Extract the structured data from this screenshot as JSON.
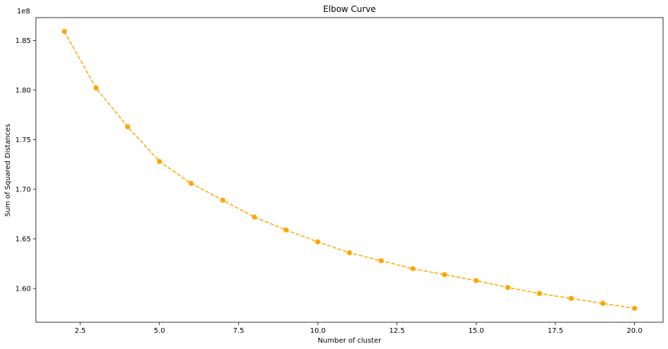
{
  "chart_data": {
    "type": "line",
    "title": "Elbow Curve",
    "xlabel": "Number of cluster",
    "ylabel": "Sum of Squared Distances",
    "y_offset_label": "1e8",
    "x": [
      2,
      3,
      4,
      5,
      6,
      7,
      8,
      9,
      10,
      11,
      12,
      13,
      14,
      15,
      16,
      17,
      18,
      19,
      20
    ],
    "series": [
      {
        "values": [
          1.859,
          1.802,
          1.763,
          1.728,
          1.706,
          1.689,
          1.672,
          1.659,
          1.647,
          1.636,
          1.628,
          1.62,
          1.614,
          1.608,
          1.601,
          1.595,
          1.59,
          1.585,
          1.58
        ],
        "color": "#ffa500",
        "linestyle": "dashed",
        "marker": "circle"
      }
    ],
    "xlim": [
      1.1,
      20.9
    ],
    "ylim": [
      1.566,
      1.873
    ],
    "x_ticks": [
      2.5,
      5.0,
      7.5,
      10.0,
      12.5,
      15.0,
      17.5,
      20.0
    ],
    "x_tick_labels": [
      "2.5",
      "5.0",
      "7.5",
      "10.0",
      "12.5",
      "15.0",
      "17.5",
      "20.0"
    ],
    "y_ticks": [
      1.6,
      1.65,
      1.7,
      1.75,
      1.8,
      1.85
    ],
    "y_tick_labels": [
      "1.60",
      "1.65",
      "1.70",
      "1.75",
      "1.80",
      "1.85"
    ],
    "grid": false,
    "legend": "none"
  }
}
